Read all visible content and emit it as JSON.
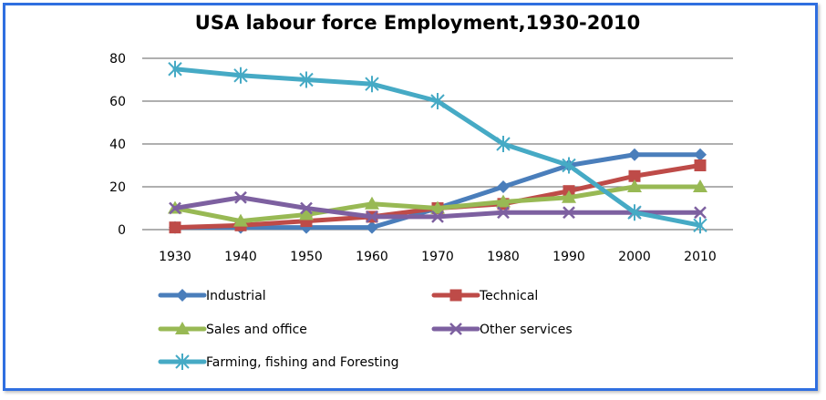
{
  "chart_data": {
    "type": "line",
    "title": "USA labour force Employment,1930-2010",
    "x": [
      "1930",
      "1940",
      "1950",
      "1960",
      "1970",
      "1980",
      "1990",
      "2000",
      "2010"
    ],
    "y_ticks": [
      "0",
      "20",
      "40",
      "60",
      "80"
    ],
    "ylim": [
      0,
      80
    ],
    "grid": true,
    "legend_placement": "bottom",
    "series": [
      {
        "name": "Industrial",
        "color": "#4a7ebb",
        "marker": "diamond",
        "values": [
          1,
          1,
          1,
          1,
          10,
          20,
          30,
          35,
          35
        ]
      },
      {
        "name": "Technical",
        "color": "#be4b48",
        "marker": "square",
        "values": [
          1,
          2,
          4,
          6,
          10,
          12,
          18,
          25,
          30
        ]
      },
      {
        "name": "Sales and office",
        "color": "#98b954",
        "marker": "triangle",
        "values": [
          10,
          4,
          7,
          12,
          10,
          13,
          15,
          20,
          20
        ]
      },
      {
        "name": "Other services",
        "color": "#7d60a0",
        "marker": "x",
        "values": [
          10,
          15,
          10,
          6,
          6,
          8,
          8,
          8,
          8
        ]
      },
      {
        "name": "Farming, fishing and Foresting",
        "color": "#46aac5",
        "marker": "star",
        "values": [
          75,
          72,
          70,
          68,
          60,
          40,
          30,
          8,
          2
        ]
      }
    ]
  }
}
